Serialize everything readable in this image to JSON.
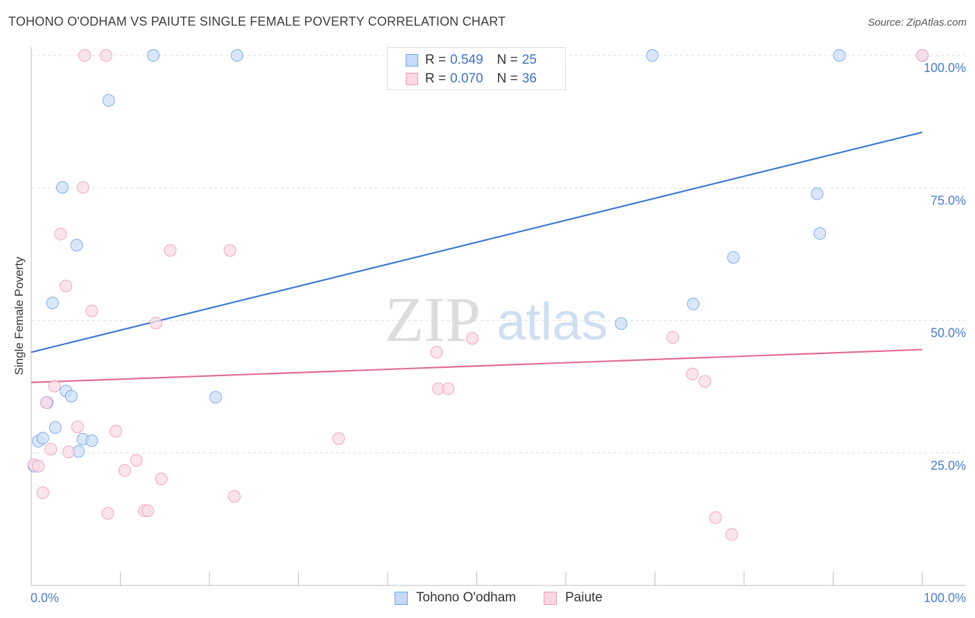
{
  "title": "TOHONO O'ODHAM VS PAIUTE SINGLE FEMALE POVERTY CORRELATION CHART",
  "source": "Source: ZipAtlas.com",
  "watermark": {
    "zip": "ZIP",
    "atlas": "atlas"
  },
  "legend": {
    "rows": [
      {
        "r_label": "R =",
        "r_value": "0.549",
        "n_label": "N =",
        "n_value": "25",
        "color": "#6fa3e8"
      },
      {
        "r_label": "R =",
        "r_value": "0.070",
        "n_label": "N =",
        "n_value": "36",
        "color": "#f09ab8"
      }
    ]
  },
  "bottom_legend": [
    {
      "label": "Tohono O'odham",
      "color": "#6fa3e8"
    },
    {
      "label": "Paiute",
      "color": "#f09ab8"
    }
  ],
  "chart_data": {
    "type": "scatter",
    "title": "TOHONO O'ODHAM VS PAIUTE SINGLE FEMALE POVERTY CORRELATION CHART",
    "xlabel": "",
    "ylabel": "Single Female Poverty",
    "xlim": [
      0,
      100
    ],
    "ylim": [
      0,
      100
    ],
    "x_tick_labels": [
      "0.0%",
      "100.0%"
    ],
    "y_ticks": [
      25,
      50,
      75,
      100
    ],
    "y_tick_labels": [
      "25.0%",
      "50.0%",
      "75.0%",
      "100.0%"
    ],
    "grid": true,
    "series": [
      {
        "name": "Tohono O'odham",
        "color": "#6fa3e8",
        "r": 0.549,
        "n": 25,
        "trend": {
          "x": [
            0,
            100
          ],
          "y": [
            44.0,
            85.5
          ],
          "color": "#3a78d4"
        },
        "points": [
          [
            0.3,
            22.5
          ],
          [
            0.8,
            27.2
          ],
          [
            1.3,
            27.8
          ],
          [
            1.8,
            34.5
          ],
          [
            2.7,
            29.8
          ],
          [
            2.4,
            53.3
          ],
          [
            3.5,
            75.1
          ],
          [
            3.9,
            36.7
          ],
          [
            4.5,
            35.7
          ],
          [
            5.1,
            64.2
          ],
          [
            5.3,
            25.3
          ],
          [
            5.8,
            27.6
          ],
          [
            6.8,
            27.3
          ],
          [
            8.7,
            91.5
          ],
          [
            13.7,
            100
          ],
          [
            20.7,
            35.5
          ],
          [
            23.1,
            100
          ],
          [
            66.2,
            49.4
          ],
          [
            69.7,
            100
          ],
          [
            74.3,
            53.1
          ],
          [
            78.8,
            61.9
          ],
          [
            88.2,
            73.9
          ],
          [
            88.5,
            66.4
          ],
          [
            90.7,
            100
          ],
          [
            100,
            100
          ]
        ]
      },
      {
        "name": "Paiute",
        "color": "#f09ab8",
        "r": 0.07,
        "n": 36,
        "trend": {
          "x": [
            0,
            100
          ],
          "y": [
            38.3,
            44.5
          ],
          "color": "#e26b96"
        },
        "points": [
          [
            0.3,
            22.8
          ],
          [
            0.8,
            22.5
          ],
          [
            1.3,
            17.5
          ],
          [
            1.7,
            34.5
          ],
          [
            2.2,
            25.7
          ],
          [
            2.6,
            37.6
          ],
          [
            3.3,
            66.3
          ],
          [
            3.9,
            56.5
          ],
          [
            4.2,
            25.2
          ],
          [
            5.2,
            29.9
          ],
          [
            5.8,
            75.1
          ],
          [
            6.0,
            100
          ],
          [
            6.8,
            51.8
          ],
          [
            8.4,
            100
          ],
          [
            8.6,
            13.6
          ],
          [
            9.5,
            29.1
          ],
          [
            10.5,
            21.7
          ],
          [
            11.8,
            23.6
          ],
          [
            12.7,
            14.1
          ],
          [
            13.1,
            14.1
          ],
          [
            14.0,
            49.5
          ],
          [
            14.6,
            20.1
          ],
          [
            15.6,
            63.2
          ],
          [
            22.3,
            63.2
          ],
          [
            22.8,
            16.8
          ],
          [
            34.5,
            27.7
          ],
          [
            45.5,
            44.0
          ],
          [
            45.7,
            37.1
          ],
          [
            46.8,
            37.1
          ],
          [
            49.5,
            46.6
          ],
          [
            72.0,
            46.8
          ],
          [
            74.2,
            39.9
          ],
          [
            75.6,
            38.5
          ],
          [
            76.8,
            12.8
          ],
          [
            78.6,
            9.6
          ],
          [
            100,
            100
          ]
        ]
      }
    ]
  }
}
